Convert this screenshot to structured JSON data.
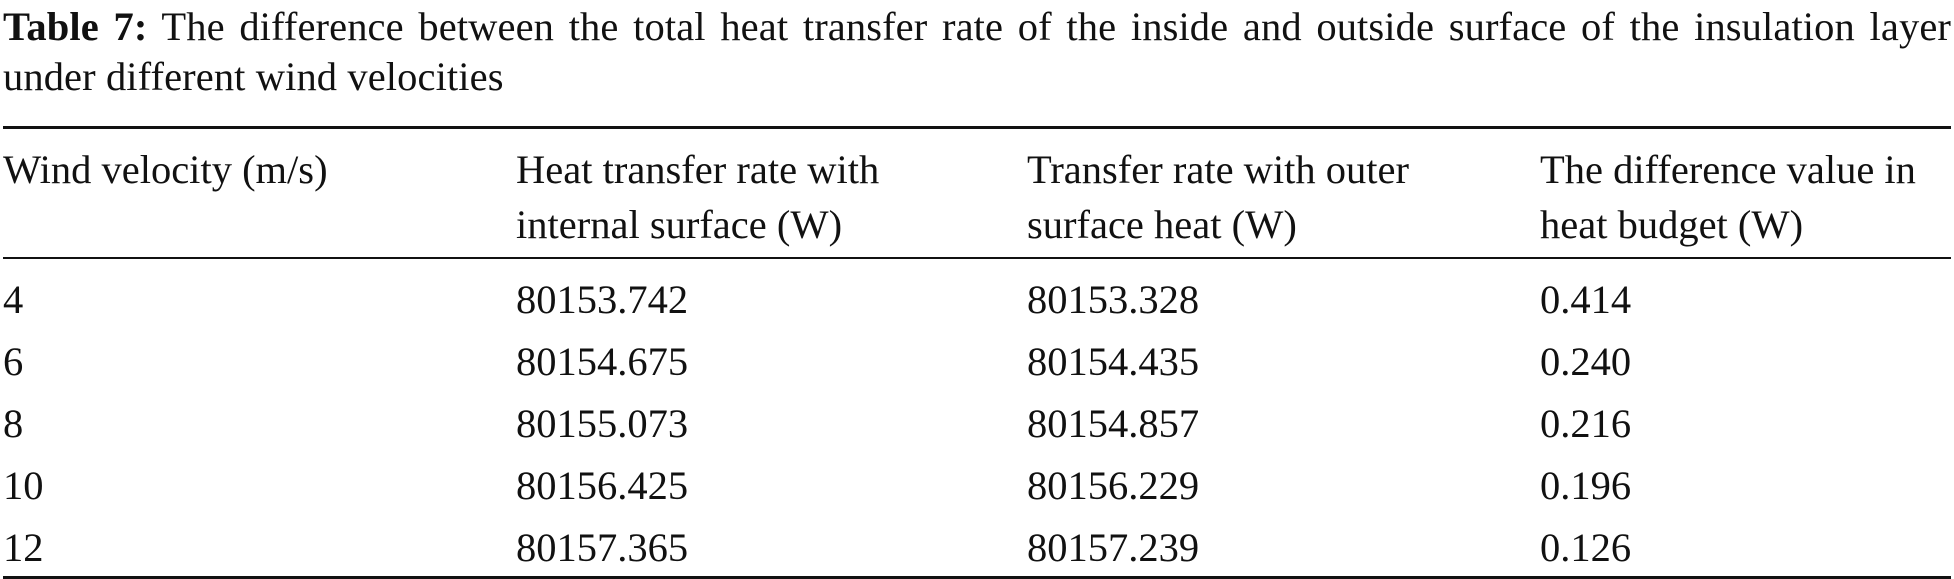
{
  "caption": {
    "label": "Table 7:",
    "text": "The difference between the total heat transfer rate of the inside and outside surface of the insulation layer under different wind velocities"
  },
  "table": {
    "headers": [
      "Wind velocity (m/s)",
      "Heat transfer rate with internal surface (W)",
      "Transfer rate with outer surface heat (W)",
      "The difference value in heat budget (W)"
    ],
    "rows": [
      [
        "4",
        "80153.742",
        "80153.328",
        "0.414"
      ],
      [
        "6",
        "80154.675",
        "80154.435",
        "0.240"
      ],
      [
        "8",
        "80155.073",
        "80154.857",
        "0.216"
      ],
      [
        "10",
        "80156.425",
        "80156.229",
        "0.196"
      ],
      [
        "12",
        "80157.365",
        "80157.239",
        "0.126"
      ]
    ]
  }
}
